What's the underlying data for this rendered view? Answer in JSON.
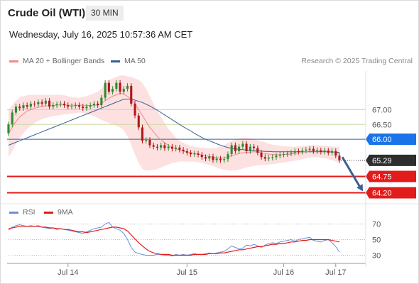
{
  "header": {
    "title": "Crude Oil (WTI)",
    "timeframe": "30 MIN",
    "datetime": "Wednesday, July 16, 2025 10:57:36 AM CET"
  },
  "legend": {
    "items": [
      {
        "label": "MA 20 + Bollinger Bands",
        "color": "#f4888f"
      },
      {
        "label": "MA 50",
        "color": "#3a5f95"
      }
    ],
    "credit": "Research © 2025 Trading Central"
  },
  "rsi_legend": {
    "items": [
      {
        "label": "RSI",
        "color": "#6d8fd6"
      },
      {
        "label": "9MA",
        "color": "#e21b1b"
      }
    ]
  },
  "colors": {
    "up": "#2f8a2f",
    "down": "#b01818",
    "bollinger_fill": "#fde0e0",
    "ma20": "#f4888f",
    "ma50": "#3a5f95",
    "resistance": "#c8dca0",
    "pivot": "#3a5f95",
    "support": "#e21b1b",
    "current_tag": "#2e2e2e",
    "pivot_tag": "#1a73e8",
    "support_tag": "#e21b1b",
    "arrow": "#3a5f95"
  },
  "chart_data": [
    {
      "type": "candlestick",
      "ylim": [
        63.9,
        68.3
      ],
      "x_ticks": [
        "Jul 14",
        "Jul 15",
        "Jul 16",
        "Jul 17"
      ],
      "levels": [
        {
          "value": 67.0,
          "label": "67.00",
          "kind": "resistance"
        },
        {
          "value": 66.5,
          "label": "66.50",
          "kind": "resistance"
        },
        {
          "value": 66.0,
          "label": "66.00",
          "kind": "pivot"
        },
        {
          "value": 64.75,
          "label": "64.75",
          "kind": "support"
        },
        {
          "value": 64.2,
          "label": "64.20",
          "kind": "support"
        }
      ],
      "last_price": {
        "value": 65.29,
        "label": "65.29"
      },
      "forecast_arrow": {
        "from": 65.4,
        "to": 64.25
      },
      "closes": [
        66.5,
        66.9,
        67.1,
        67.05,
        67.15,
        67.1,
        67.2,
        67.18,
        67.25,
        67.2,
        67.3,
        67.1,
        67.15,
        67.18,
        67.2,
        67.15,
        67.1,
        67.12,
        67.15,
        67.1,
        67.05,
        67.1,
        67.15,
        67.2,
        67.15,
        67.4,
        67.9,
        67.6,
        67.7,
        67.9,
        67.6,
        67.7,
        67.8,
        67.2,
        66.8,
        66.4,
        65.95,
        65.98,
        65.8,
        65.75,
        65.72,
        65.8,
        65.7,
        65.75,
        65.68,
        65.72,
        65.65,
        65.6,
        65.55,
        65.5,
        65.52,
        65.48,
        65.4,
        65.35,
        65.42,
        65.3,
        65.35,
        65.3,
        65.33,
        65.5,
        65.8,
        65.6,
        65.75,
        65.85,
        65.6,
        65.75,
        65.7,
        65.55,
        65.4,
        65.35,
        65.38,
        65.4,
        65.45,
        65.48,
        65.5,
        65.52,
        65.55,
        65.6,
        65.58,
        65.62,
        65.65,
        65.68,
        65.6,
        65.63,
        65.58,
        65.62,
        65.55,
        65.6,
        65.45,
        65.29
      ],
      "opens": [
        66.2,
        66.5,
        66.9,
        67.1,
        67.05,
        67.15,
        67.1,
        67.2,
        67.18,
        67.25,
        67.2,
        67.3,
        67.1,
        67.15,
        67.18,
        67.2,
        67.15,
        67.1,
        67.12,
        67.15,
        67.1,
        67.05,
        67.1,
        67.15,
        67.2,
        67.15,
        67.4,
        67.9,
        67.6,
        67.7,
        67.9,
        67.6,
        67.7,
        67.8,
        67.2,
        66.8,
        66.4,
        65.95,
        65.98,
        65.8,
        65.75,
        65.72,
        65.8,
        65.7,
        65.75,
        65.68,
        65.72,
        65.65,
        65.6,
        65.55,
        65.5,
        65.52,
        65.48,
        65.4,
        65.35,
        65.42,
        65.3,
        65.35,
        65.3,
        65.33,
        65.5,
        65.8,
        65.6,
        65.75,
        65.85,
        65.6,
        65.75,
        65.7,
        65.55,
        65.4,
        65.35,
        65.38,
        65.4,
        65.45,
        65.48,
        65.5,
        65.52,
        65.55,
        65.6,
        65.58,
        65.62,
        65.65,
        65.68,
        65.6,
        65.63,
        65.58,
        65.62,
        65.55,
        65.6,
        65.45
      ],
      "ma20": [
        66.2,
        66.4,
        66.6,
        66.75,
        66.85,
        66.95,
        67.0,
        67.05,
        67.08,
        67.1,
        67.12,
        67.13,
        67.14,
        67.15,
        67.16,
        67.16,
        67.15,
        67.15,
        67.15,
        67.15,
        67.15,
        67.14,
        67.14,
        67.15,
        67.15,
        67.2,
        67.3,
        67.38,
        67.45,
        67.5,
        67.55,
        67.52,
        67.45,
        67.35,
        67.2,
        67.0,
        66.8,
        66.6,
        66.4,
        66.25,
        66.1,
        65.98,
        65.88,
        65.8,
        65.73,
        65.68,
        65.64,
        65.6,
        65.57,
        65.55,
        65.52,
        65.5,
        65.47,
        65.44,
        65.42,
        65.4,
        65.38,
        65.37,
        65.37,
        65.4,
        65.45,
        65.48,
        65.52,
        65.55,
        65.56,
        65.57,
        65.58,
        65.57,
        65.55,
        65.52,
        65.5,
        65.49,
        65.48,
        65.48,
        65.48,
        65.49,
        65.5,
        65.52,
        65.54,
        65.56,
        65.58,
        65.6,
        65.6,
        65.6,
        65.6,
        65.6,
        65.59,
        65.59,
        65.56,
        65.52
      ],
      "bb_upper": [
        67.0,
        67.15,
        67.3,
        67.4,
        67.45,
        67.48,
        67.5,
        67.5,
        67.5,
        67.5,
        67.5,
        67.5,
        67.5,
        67.5,
        67.5,
        67.48,
        67.45,
        67.42,
        67.4,
        67.4,
        67.42,
        67.45,
        67.5,
        67.55,
        67.6,
        67.7,
        67.9,
        68.0,
        68.05,
        68.1,
        68.15,
        68.15,
        68.12,
        68.1,
        68.05,
        68.0,
        67.9,
        67.7,
        67.45,
        67.2,
        66.95,
        66.75,
        66.55,
        66.35,
        66.2,
        66.05,
        65.95,
        65.88,
        65.82,
        65.78,
        65.75,
        65.73,
        65.72,
        65.7,
        65.7,
        65.7,
        65.72,
        65.75,
        65.8,
        65.88,
        65.95,
        66.0,
        66.02,
        66.05,
        66.05,
        66.03,
        66.0,
        65.97,
        65.93,
        65.9,
        65.85,
        65.82,
        65.8,
        65.78,
        65.77,
        65.76,
        65.75,
        65.75,
        65.76,
        65.77,
        65.78,
        65.8,
        65.8,
        65.8,
        65.79,
        65.78,
        65.77,
        65.76,
        65.75,
        65.75
      ],
      "bb_lower": [
        65.4,
        65.6,
        65.85,
        66.05,
        66.2,
        66.35,
        66.45,
        66.55,
        66.62,
        66.68,
        66.72,
        66.75,
        66.78,
        66.8,
        66.82,
        66.84,
        66.85,
        66.86,
        66.88,
        66.9,
        66.88,
        66.85,
        66.82,
        66.78,
        66.72,
        66.65,
        66.6,
        66.55,
        66.5,
        66.45,
        66.4,
        66.3,
        66.1,
        65.8,
        65.5,
        65.2,
        65.0,
        64.95,
        64.95,
        64.97,
        65.0,
        65.05,
        65.1,
        65.15,
        65.2,
        65.22,
        65.25,
        65.25,
        65.25,
        65.25,
        65.25,
        65.23,
        65.2,
        65.17,
        65.14,
        65.1,
        65.05,
        65.0,
        64.98,
        64.95,
        64.95,
        64.95,
        64.98,
        65.02,
        65.05,
        65.08,
        65.1,
        65.12,
        65.13,
        65.14,
        65.15,
        65.16,
        65.18,
        65.2,
        65.22,
        65.24,
        65.26,
        65.28,
        65.3,
        65.33,
        65.36,
        65.38,
        65.4,
        65.4,
        65.38,
        65.36,
        65.33,
        65.3,
        65.25,
        65.2
      ],
      "ma50": [
        65.8,
        65.85,
        65.9,
        65.95,
        66.0,
        66.05,
        66.1,
        66.15,
        66.2,
        66.25,
        66.3,
        66.35,
        66.4,
        66.45,
        66.5,
        66.55,
        66.6,
        66.65,
        66.7,
        66.75,
        66.8,
        66.85,
        66.9,
        66.95,
        67.0,
        67.05,
        67.1,
        67.15,
        67.2,
        67.25,
        67.3,
        67.35,
        67.35,
        67.35,
        67.32,
        67.28,
        67.24,
        67.18,
        67.12,
        67.05,
        66.98,
        66.9,
        66.82,
        66.74,
        66.66,
        66.58,
        66.5,
        66.42,
        66.35,
        66.28,
        66.2,
        66.13,
        66.06,
        66.0,
        65.95,
        65.9,
        65.85,
        65.8,
        65.76,
        65.72,
        65.7,
        65.68,
        65.66,
        65.65,
        65.64,
        65.63,
        65.62,
        65.61,
        65.6,
        65.59,
        65.59,
        65.58,
        65.58,
        65.58,
        65.58,
        65.58,
        65.58,
        65.58,
        65.58,
        65.58,
        65.58,
        65.58,
        65.58,
        65.58,
        65.58,
        65.58,
        65.58,
        65.57,
        65.57,
        65.56
      ]
    },
    {
      "type": "line",
      "ylim": [
        25,
        75
      ],
      "y_ticks": [
        70,
        50,
        30
      ],
      "series": [
        {
          "name": "RSI",
          "values": [
            62,
            66,
            68,
            69,
            68,
            67,
            68,
            67,
            68,
            66,
            65,
            64,
            65,
            63,
            64,
            63,
            62,
            61,
            60,
            59,
            58,
            60,
            62,
            64,
            65,
            66,
            70,
            72,
            66,
            64,
            62,
            58,
            50,
            40,
            34,
            32,
            31,
            30,
            30,
            30,
            31,
            31,
            30,
            30,
            29,
            31,
            30,
            31,
            30,
            31,
            32,
            31,
            31,
            32,
            33,
            32,
            33,
            34,
            35,
            38,
            42,
            40,
            38,
            39,
            43,
            42,
            44,
            42,
            40,
            43,
            45,
            46,
            45,
            47,
            48,
            49,
            50,
            48,
            50,
            51,
            52,
            53,
            49,
            48,
            47,
            49,
            50,
            46,
            41,
            34
          ]
        },
        {
          "name": "9MA",
          "values": [
            64,
            65,
            66,
            67,
            67,
            67,
            67,
            67,
            67,
            66,
            66,
            65,
            65,
            64,
            64,
            63,
            63,
            62,
            61,
            60,
            60,
            59,
            60,
            61,
            62,
            63,
            64,
            65,
            66,
            66,
            65,
            64,
            61,
            56,
            51,
            46,
            42,
            38,
            35,
            33,
            32,
            31,
            31,
            31,
            30,
            30,
            30,
            30,
            30,
            30,
            31,
            31,
            31,
            31,
            32,
            32,
            32,
            33,
            33,
            34,
            35,
            36,
            37,
            37,
            38,
            39,
            40,
            41,
            41,
            42,
            43,
            44,
            44,
            45,
            45,
            46,
            47,
            47,
            48,
            49,
            49,
            50,
            50,
            50,
            50,
            50,
            50,
            49,
            48,
            47
          ]
        }
      ]
    }
  ]
}
